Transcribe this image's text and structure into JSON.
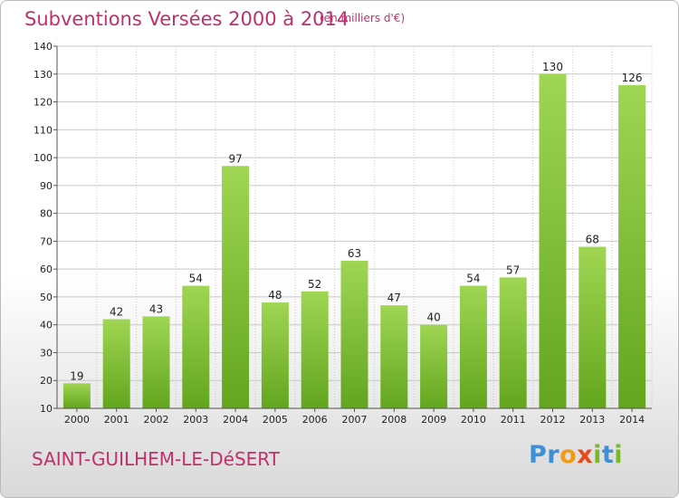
{
  "header": {
    "title": "Subventions Versées 2000 à 2014",
    "subtitle": "(en milliers d'€)"
  },
  "footer": {
    "commune": "SAINT-GUILHEM-LE-DéSERT",
    "logo": "Proxiti"
  },
  "colors": {
    "title": "#c0306a",
    "bar_top": "#9fd653",
    "bar_bottom": "#63a51e",
    "grid": "#c8c8c8",
    "logo_letters": [
      "#3d8fd6",
      "#3d8fd6",
      "#f29a1a",
      "#e94a1c",
      "#79b829",
      "#3d8fd6",
      "#79b829"
    ]
  },
  "chart_data": {
    "type": "bar",
    "categories": [
      "2000",
      "2001",
      "2002",
      "2003",
      "2004",
      "2005",
      "2006",
      "2007",
      "2008",
      "2009",
      "2010",
      "2011",
      "2012",
      "2013",
      "2014"
    ],
    "values": [
      19,
      42,
      43,
      54,
      97,
      48,
      52,
      63,
      47,
      40,
      54,
      57,
      130,
      68,
      126
    ],
    "title": "Subventions Versées 2000 à 2014",
    "subtitle": "(en milliers d'€)",
    "xlabel": "",
    "ylabel": "",
    "ylim": [
      10,
      140
    ],
    "yticks": [
      10,
      20,
      30,
      40,
      50,
      60,
      70,
      80,
      90,
      100,
      110,
      120,
      130,
      140
    ],
    "grid": true,
    "legend": "none",
    "data_labels": true
  }
}
